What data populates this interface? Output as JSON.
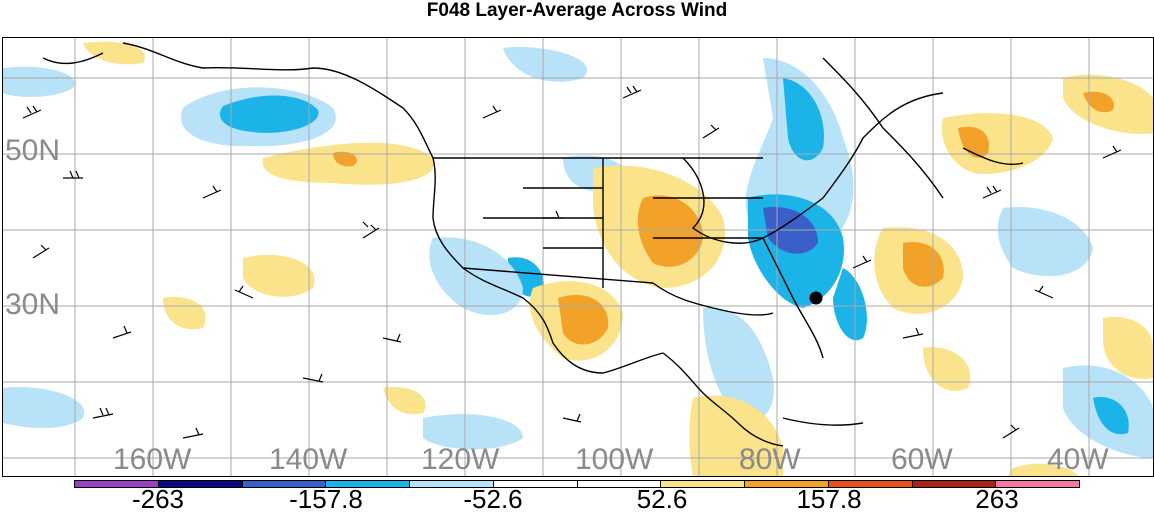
{
  "title": "F048 Layer-Average Across Wind",
  "latitude_labels": [
    "50N",
    "30N"
  ],
  "longitude_labels": [
    "160W",
    "140W",
    "120W",
    "100W",
    "80W",
    "60W",
    "40W"
  ],
  "colorbar": {
    "colors": [
      "#9b3fc4",
      "#0a0a7a",
      "#3a5fc8",
      "#1cb4e8",
      "#b8e2f8",
      "#ffffff",
      "#ffffff",
      "#fbe38c",
      "#f2a229",
      "#e8501a",
      "#a8231c",
      "#f07aa6"
    ],
    "labels": [
      "-263",
      "-157.8",
      "-52.6",
      "52.6",
      "157.8",
      "263"
    ]
  },
  "marker": "storm-center-dot"
}
